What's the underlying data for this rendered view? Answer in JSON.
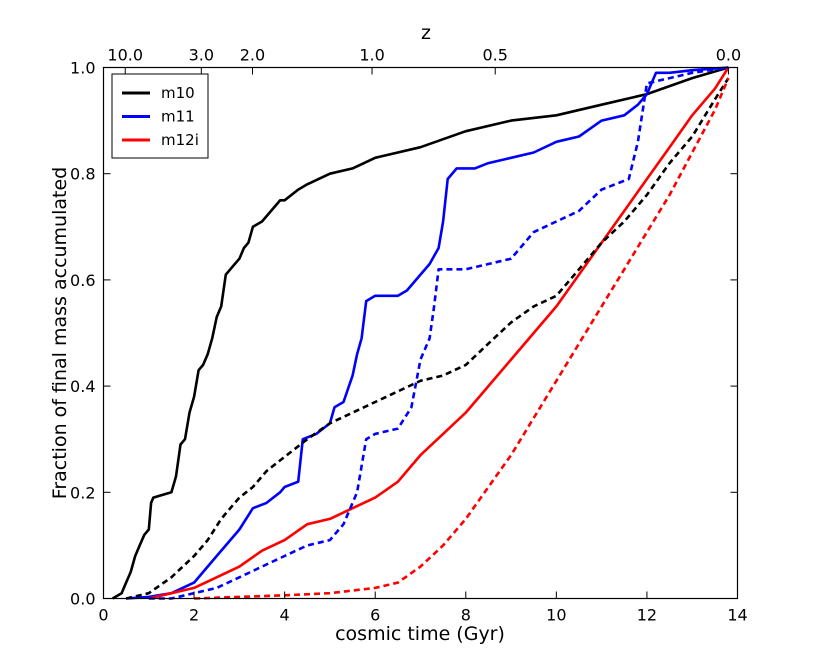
{
  "chart_data": {
    "type": "line",
    "xlabel": "cosmic time (Gyr)",
    "ylabel": "Fraction of final mass accumulated",
    "top_axis_label": "z",
    "xlim": [
      0,
      14
    ],
    "ylim": [
      0,
      1
    ],
    "x_ticks": [
      0,
      2,
      4,
      6,
      8,
      10,
      12,
      14
    ],
    "x_tick_labels": [
      "0",
      "2",
      "4",
      "6",
      "8",
      "10",
      "12",
      "14"
    ],
    "y_ticks": [
      0,
      0.2,
      0.4,
      0.6,
      0.8,
      1.0
    ],
    "y_tick_labels": [
      "0.0",
      "0.2",
      "0.4",
      "0.6",
      "0.8",
      "1.0"
    ],
    "top_ticks": [
      {
        "label": "10.0",
        "time": 0.48
      },
      {
        "label": "3.0",
        "time": 2.16
      },
      {
        "label": "2.0",
        "time": 3.29
      },
      {
        "label": "1.0",
        "time": 5.93
      },
      {
        "label": "0.5",
        "time": 8.65
      },
      {
        "label": "0.0",
        "time": 13.8
      }
    ],
    "legend": [
      {
        "name": "m10",
        "color": "#000000"
      },
      {
        "name": "m11",
        "color": "#0000ff"
      },
      {
        "name": "m12i",
        "color": "#ff0000"
      }
    ],
    "legend_position": "top-left",
    "series": [
      {
        "name": "m10",
        "color": "#000000",
        "style": "solid",
        "x": [
          0.2,
          0.4,
          0.5,
          0.6,
          0.7,
          0.8,
          0.9,
          1.0,
          1.05,
          1.1,
          1.5,
          1.6,
          1.7,
          1.8,
          1.9,
          2.0,
          2.1,
          2.2,
          2.3,
          2.4,
          2.5,
          2.6,
          2.7,
          2.8,
          2.9,
          3.0,
          3.1,
          3.2,
          3.3,
          3.5,
          3.7,
          3.8,
          3.9,
          4.0,
          4.3,
          4.5,
          5.0,
          5.5,
          6.0,
          7.0,
          8.0,
          9.0,
          10.0,
          11.0,
          12.0,
          13.0,
          13.8
        ],
        "y": [
          0.0,
          0.01,
          0.03,
          0.05,
          0.08,
          0.1,
          0.12,
          0.13,
          0.18,
          0.19,
          0.2,
          0.23,
          0.29,
          0.3,
          0.35,
          0.38,
          0.43,
          0.44,
          0.46,
          0.49,
          0.53,
          0.55,
          0.61,
          0.62,
          0.63,
          0.64,
          0.66,
          0.67,
          0.7,
          0.71,
          0.73,
          0.74,
          0.75,
          0.75,
          0.77,
          0.78,
          0.8,
          0.81,
          0.83,
          0.85,
          0.88,
          0.9,
          0.91,
          0.93,
          0.95,
          0.98,
          1.0
        ]
      },
      {
        "name": "m11",
        "color": "#0000ff",
        "style": "solid",
        "x": [
          0.5,
          1.0,
          1.5,
          2.0,
          2.2,
          2.5,
          2.8,
          3.0,
          3.3,
          3.6,
          3.9,
          4.0,
          4.3,
          4.4,
          4.7,
          5.0,
          5.1,
          5.3,
          5.5,
          5.6,
          5.7,
          5.8,
          6.0,
          6.5,
          6.7,
          7.0,
          7.2,
          7.4,
          7.5,
          7.6,
          7.8,
          8.2,
          8.5,
          9.0,
          9.5,
          10.0,
          10.5,
          11.0,
          11.5,
          11.8,
          12.0,
          12.2,
          12.5,
          13.0,
          13.8
        ],
        "y": [
          0.0,
          0.003,
          0.01,
          0.03,
          0.05,
          0.08,
          0.11,
          0.13,
          0.17,
          0.18,
          0.2,
          0.21,
          0.22,
          0.3,
          0.31,
          0.33,
          0.36,
          0.37,
          0.42,
          0.46,
          0.49,
          0.56,
          0.57,
          0.57,
          0.58,
          0.61,
          0.63,
          0.66,
          0.71,
          0.79,
          0.81,
          0.81,
          0.82,
          0.83,
          0.84,
          0.86,
          0.87,
          0.9,
          0.91,
          0.93,
          0.95,
          0.99,
          0.99,
          0.995,
          1.0
        ]
      },
      {
        "name": "m12i",
        "color": "#ff0000",
        "style": "solid",
        "x": [
          1.0,
          1.5,
          2.0,
          2.5,
          3.0,
          3.5,
          4.0,
          4.5,
          5.0,
          5.5,
          6.0,
          6.5,
          7.0,
          7.5,
          8.0,
          8.5,
          9.0,
          9.5,
          10.0,
          10.5,
          11.0,
          11.5,
          12.0,
          12.5,
          13.0,
          13.5,
          13.8
        ],
        "y": [
          0.0,
          0.01,
          0.02,
          0.04,
          0.06,
          0.09,
          0.11,
          0.14,
          0.15,
          0.17,
          0.19,
          0.22,
          0.27,
          0.31,
          0.35,
          0.4,
          0.45,
          0.5,
          0.55,
          0.61,
          0.67,
          0.73,
          0.79,
          0.85,
          0.91,
          0.96,
          1.0
        ]
      },
      {
        "name": "m10 (dashed)",
        "color": "#000000",
        "style": "dashed",
        "x": [
          0.5,
          1.0,
          1.5,
          2.0,
          2.3,
          2.6,
          2.8,
          3.0,
          3.3,
          3.6,
          3.9,
          4.2,
          4.5,
          5.0,
          5.5,
          6.0,
          6.5,
          7.0,
          7.5,
          8.0,
          8.5,
          9.0,
          9.5,
          10.0,
          10.5,
          11.0,
          11.5,
          12.0,
          12.5,
          13.0,
          13.5,
          13.8
        ],
        "y": [
          0.0,
          0.01,
          0.04,
          0.08,
          0.11,
          0.15,
          0.17,
          0.19,
          0.21,
          0.24,
          0.26,
          0.28,
          0.3,
          0.33,
          0.35,
          0.37,
          0.39,
          0.41,
          0.42,
          0.44,
          0.48,
          0.52,
          0.55,
          0.57,
          0.62,
          0.67,
          0.71,
          0.76,
          0.82,
          0.87,
          0.94,
          0.98
        ]
      },
      {
        "name": "m11 (dashed)",
        "color": "#0000ff",
        "style": "dashed",
        "x": [
          1.0,
          1.5,
          2.0,
          2.5,
          3.0,
          3.5,
          4.0,
          4.5,
          5.0,
          5.3,
          5.6,
          5.8,
          6.0,
          6.5,
          6.8,
          7.0,
          7.2,
          7.3,
          7.4,
          7.6,
          8.0,
          8.5,
          9.0,
          9.3,
          9.5,
          10.0,
          10.5,
          11.0,
          11.3,
          11.6,
          11.8,
          12.0,
          12.5,
          13.0,
          13.8
        ],
        "y": [
          0.0,
          0.0,
          0.01,
          0.02,
          0.04,
          0.06,
          0.08,
          0.1,
          0.11,
          0.14,
          0.2,
          0.3,
          0.31,
          0.32,
          0.36,
          0.45,
          0.49,
          0.55,
          0.62,
          0.62,
          0.62,
          0.63,
          0.64,
          0.67,
          0.69,
          0.71,
          0.73,
          0.77,
          0.78,
          0.79,
          0.86,
          0.97,
          0.98,
          0.99,
          1.0
        ]
      },
      {
        "name": "m12i (dashed)",
        "color": "#ff0000",
        "style": "dashed",
        "x": [
          2.0,
          3.0,
          4.0,
          5.0,
          6.0,
          6.5,
          7.0,
          7.5,
          8.0,
          8.5,
          9.0,
          9.5,
          10.0,
          10.5,
          11.0,
          11.5,
          12.0,
          12.5,
          13.0,
          13.5,
          13.8
        ],
        "y": [
          0.0,
          0.003,
          0.006,
          0.01,
          0.02,
          0.03,
          0.06,
          0.1,
          0.15,
          0.21,
          0.27,
          0.34,
          0.41,
          0.48,
          0.55,
          0.62,
          0.69,
          0.76,
          0.84,
          0.92,
          0.98
        ]
      }
    ]
  }
}
